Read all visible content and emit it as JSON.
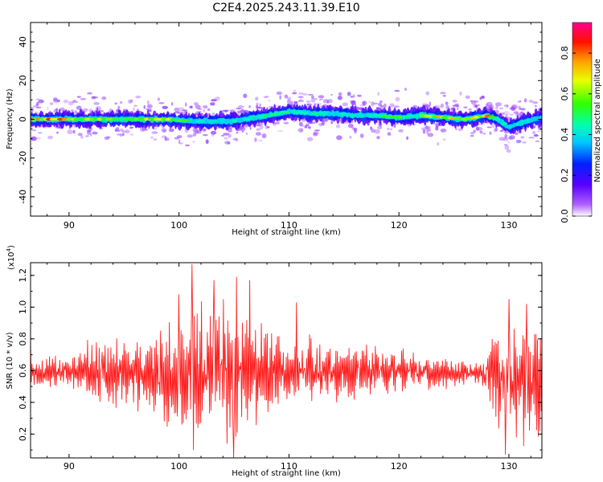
{
  "title": "C2E4.2025.243.11.39.E10",
  "colors": {
    "ridge_low": "#1a00ff",
    "ridge_mid": "#00e5ff",
    "ridge_high": "#ff0000",
    "snr_line": "#ff2020",
    "halo": "#b77dff"
  },
  "chart_data": [
    {
      "type": "heatmap",
      "title": "C2E4.2025.243.11.39.E10",
      "xlabel": "Height of straight line (km)",
      "ylabel": "Frequency (Hz)",
      "xlim": [
        86.5,
        133
      ],
      "ylim": [
        -50,
        50
      ],
      "xticks": [
        90,
        100,
        110,
        120,
        130
      ],
      "yticks": [
        -40,
        -20,
        0,
        20,
        40
      ],
      "grid": false,
      "ridge": {
        "x": [
          87,
          89,
          91,
          93,
          95,
          97,
          99,
          101,
          103,
          105,
          107,
          108,
          110,
          112,
          114,
          116,
          118,
          120,
          122,
          124,
          126,
          128,
          129,
          130,
          131,
          133
        ],
        "freq": [
          0,
          0,
          0,
          0,
          0,
          0,
          0,
          -1,
          -1,
          -1,
          1,
          2,
          4,
          3,
          3,
          2,
          2,
          1,
          2,
          1,
          0,
          2,
          0,
          -4,
          -2,
          1
        ],
        "amp": [
          0.8,
          0.9,
          0.6,
          0.7,
          0.5,
          0.8,
          0.7,
          0.5,
          0.4,
          0.45,
          0.4,
          0.5,
          0.45,
          0.5,
          0.4,
          0.45,
          0.5,
          0.6,
          0.55,
          0.8,
          0.6,
          0.85,
          0.5,
          0.4,
          0.3,
          0.4
        ]
      },
      "colorbar": {
        "label": "Normalized spectral amplitude",
        "range": [
          0,
          0.95
        ],
        "ticks": [
          "0.0",
          "0.2",
          "0.4",
          "0.6",
          "0.8"
        ]
      }
    },
    {
      "type": "line",
      "xlabel": "Height of straight line (km)",
      "ylabel": "SNR (10 * v/v)",
      "scale_label": "(x10",
      "scale_exp": "4",
      "scale_close": ")",
      "xlim": [
        86.5,
        133
      ],
      "ylim": [
        0.05,
        1.28
      ],
      "xticks": [
        90,
        100,
        110,
        120,
        130
      ],
      "yticks": [
        0.2,
        0.4,
        0.6,
        0.8,
        1.0,
        1.2
      ],
      "grid": false,
      "baseline": [
        {
          "x": 86.5,
          "y": 0.58
        },
        {
          "x": 90,
          "y": 0.6
        },
        {
          "x": 95,
          "y": 0.58
        },
        {
          "x": 100,
          "y": 0.55
        },
        {
          "x": 105,
          "y": 0.6
        },
        {
          "x": 110,
          "y": 0.6
        },
        {
          "x": 115,
          "y": 0.6
        },
        {
          "x": 120,
          "y": 0.6
        },
        {
          "x": 125,
          "y": 0.58
        },
        {
          "x": 128,
          "y": 0.58
        },
        {
          "x": 130,
          "y": 0.55
        },
        {
          "x": 133,
          "y": 0.5
        }
      ],
      "envelope": [
        {
          "x": 86.5,
          "a": 0.08
        },
        {
          "x": 90,
          "a": 0.12
        },
        {
          "x": 93,
          "a": 0.2
        },
        {
          "x": 96,
          "a": 0.22
        },
        {
          "x": 99,
          "a": 0.3
        },
        {
          "x": 101,
          "a": 0.55
        },
        {
          "x": 104,
          "a": 0.5
        },
        {
          "x": 106,
          "a": 0.45
        },
        {
          "x": 108,
          "a": 0.3
        },
        {
          "x": 110,
          "a": 0.22
        },
        {
          "x": 113,
          "a": 0.2
        },
        {
          "x": 116,
          "a": 0.18
        },
        {
          "x": 120,
          "a": 0.14
        },
        {
          "x": 124,
          "a": 0.1
        },
        {
          "x": 127.5,
          "a": 0.06
        },
        {
          "x": 128.5,
          "a": 0.3
        },
        {
          "x": 131,
          "a": 0.4
        },
        {
          "x": 133,
          "a": 0.35
        }
      ],
      "peaks": [
        {
          "x": 101.2,
          "y": 1.27
        },
        {
          "x": 100.0,
          "y": 1.08
        },
        {
          "x": 103.2,
          "y": 1.17
        },
        {
          "x": 105.2,
          "y": 1.19
        },
        {
          "x": 106.4,
          "y": 1.17
        },
        {
          "x": 104.4,
          "y": 0.14
        },
        {
          "x": 105.0,
          "y": 0.05
        },
        {
          "x": 101.3,
          "y": 0.1
        },
        {
          "x": 129.7,
          "y": 0.07
        },
        {
          "x": 130.0,
          "y": 1.05
        },
        {
          "x": 131.6,
          "y": 1.02
        },
        {
          "x": 110.7,
          "y": 1.03
        }
      ],
      "samples": 700
    }
  ]
}
